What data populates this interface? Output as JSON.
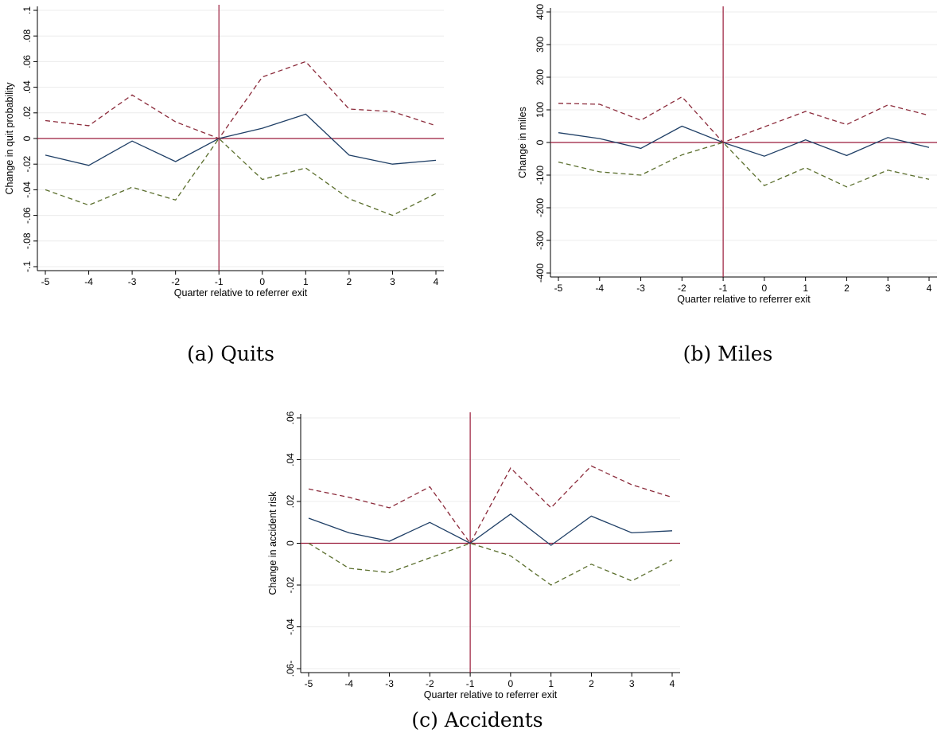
{
  "chart_data": [
    {
      "type": "line",
      "caption": "(a) Quits",
      "xlabel": "Quarter relative to referrer exit",
      "ylabel": "Change in quit probability",
      "x": [
        -5,
        -4,
        -3,
        -2,
        -1,
        0,
        1,
        2,
        3,
        4
      ],
      "xlim": [
        -5,
        4
      ],
      "ylim": [
        -0.1,
        0.1
      ],
      "yticks": [
        -0.1,
        -0.08,
        -0.06,
        -0.04,
        -0.02,
        0,
        0.02,
        0.04,
        0.06,
        0.08,
        0.1
      ],
      "ytick_labels": [
        "-.1",
        "-.08",
        "-.06",
        "-.04",
        "-.02",
        "0",
        ".02",
        ".04",
        ".06",
        ".08",
        ".1"
      ],
      "reference_lines": {
        "x": -1,
        "y": 0,
        "color": "#9a1b3a"
      },
      "grid": true,
      "series": [
        {
          "role": "point-estimate",
          "style": "solid",
          "color": "#1f3f66",
          "values": [
            -0.013,
            -0.021,
            -0.002,
            -0.018,
            0.0,
            0.008,
            0.019,
            -0.013,
            -0.02,
            -0.017
          ]
        },
        {
          "role": "upper-ci",
          "style": "dashed",
          "color": "#8b2a3a",
          "values": [
            0.014,
            0.01,
            0.034,
            0.013,
            0.0,
            0.048,
            0.06,
            0.023,
            0.021,
            0.01
          ]
        },
        {
          "role": "lower-ci",
          "style": "dashed",
          "color": "#5a6e2c",
          "values": [
            -0.04,
            -0.052,
            -0.038,
            -0.048,
            0.0,
            -0.032,
            -0.023,
            -0.047,
            -0.06,
            -0.043
          ]
        }
      ]
    },
    {
      "type": "line",
      "caption": "(b) Miles",
      "xlabel": "Quarter relative to referrer exit",
      "ylabel": "Change in miles",
      "x": [
        -5,
        -4,
        -3,
        -2,
        -1,
        0,
        1,
        2,
        3,
        4
      ],
      "xlim": [
        -5,
        4
      ],
      "ylim": [
        -400,
        400
      ],
      "yticks": [
        -400,
        -300,
        -200,
        -100,
        0,
        100,
        200,
        300,
        400
      ],
      "ytick_labels": [
        "-400",
        "-300",
        "-200",
        "-100",
        "0",
        "100",
        "200",
        "300",
        "400"
      ],
      "reference_lines": {
        "x": -1,
        "y": 0,
        "color": "#9a1b3a"
      },
      "grid": true,
      "series": [
        {
          "role": "point-estimate",
          "style": "solid",
          "color": "#1f3f66",
          "values": [
            30,
            12,
            -18,
            50,
            0,
            -42,
            8,
            -40,
            15,
            -15
          ]
        },
        {
          "role": "upper-ci",
          "style": "dashed",
          "color": "#8b2a3a",
          "values": [
            120,
            117,
            68,
            140,
            0,
            48,
            95,
            55,
            115,
            83
          ]
        },
        {
          "role": "lower-ci",
          "style": "dashed",
          "color": "#5a6e2c",
          "values": [
            -60,
            -90,
            -100,
            -38,
            0,
            -132,
            -77,
            -136,
            -85,
            -113
          ]
        }
      ]
    },
    {
      "type": "line",
      "caption": "(c) Accidents",
      "xlabel": "Quarter relative to referrer exit",
      "ylabel": "Change in accident risk",
      "x": [
        -5,
        -4,
        -3,
        -2,
        -1,
        0,
        1,
        2,
        3,
        4
      ],
      "xlim": [
        -5,
        4
      ],
      "ylim": [
        -0.06,
        0.06
      ],
      "yticks": [
        -0.06,
        -0.04,
        -0.02,
        0,
        0.02,
        0.04,
        0.06
      ],
      "ytick_labels": [
        ".06-",
        "-.04",
        "-.02",
        "0",
        ".02",
        ".04",
        ".06"
      ],
      "reference_lines": {
        "x": -1,
        "y": 0,
        "color": "#9a1b3a"
      },
      "grid": true,
      "series": [
        {
          "role": "point-estimate",
          "style": "solid",
          "color": "#1f3f66",
          "values": [
            0.012,
            0.005,
            0.001,
            0.01,
            0.0,
            0.014,
            -0.001,
            0.013,
            0.005,
            0.006
          ]
        },
        {
          "role": "upper-ci",
          "style": "dashed",
          "color": "#8b2a3a",
          "values": [
            0.026,
            0.022,
            0.017,
            0.027,
            0.0,
            0.036,
            0.017,
            0.037,
            0.028,
            0.022
          ]
        },
        {
          "role": "lower-ci",
          "style": "dashed",
          "color": "#5a6e2c",
          "values": [
            0.0,
            -0.012,
            -0.014,
            -0.007,
            0.0,
            -0.006,
            -0.02,
            -0.01,
            -0.018,
            -0.008
          ]
        }
      ]
    }
  ]
}
